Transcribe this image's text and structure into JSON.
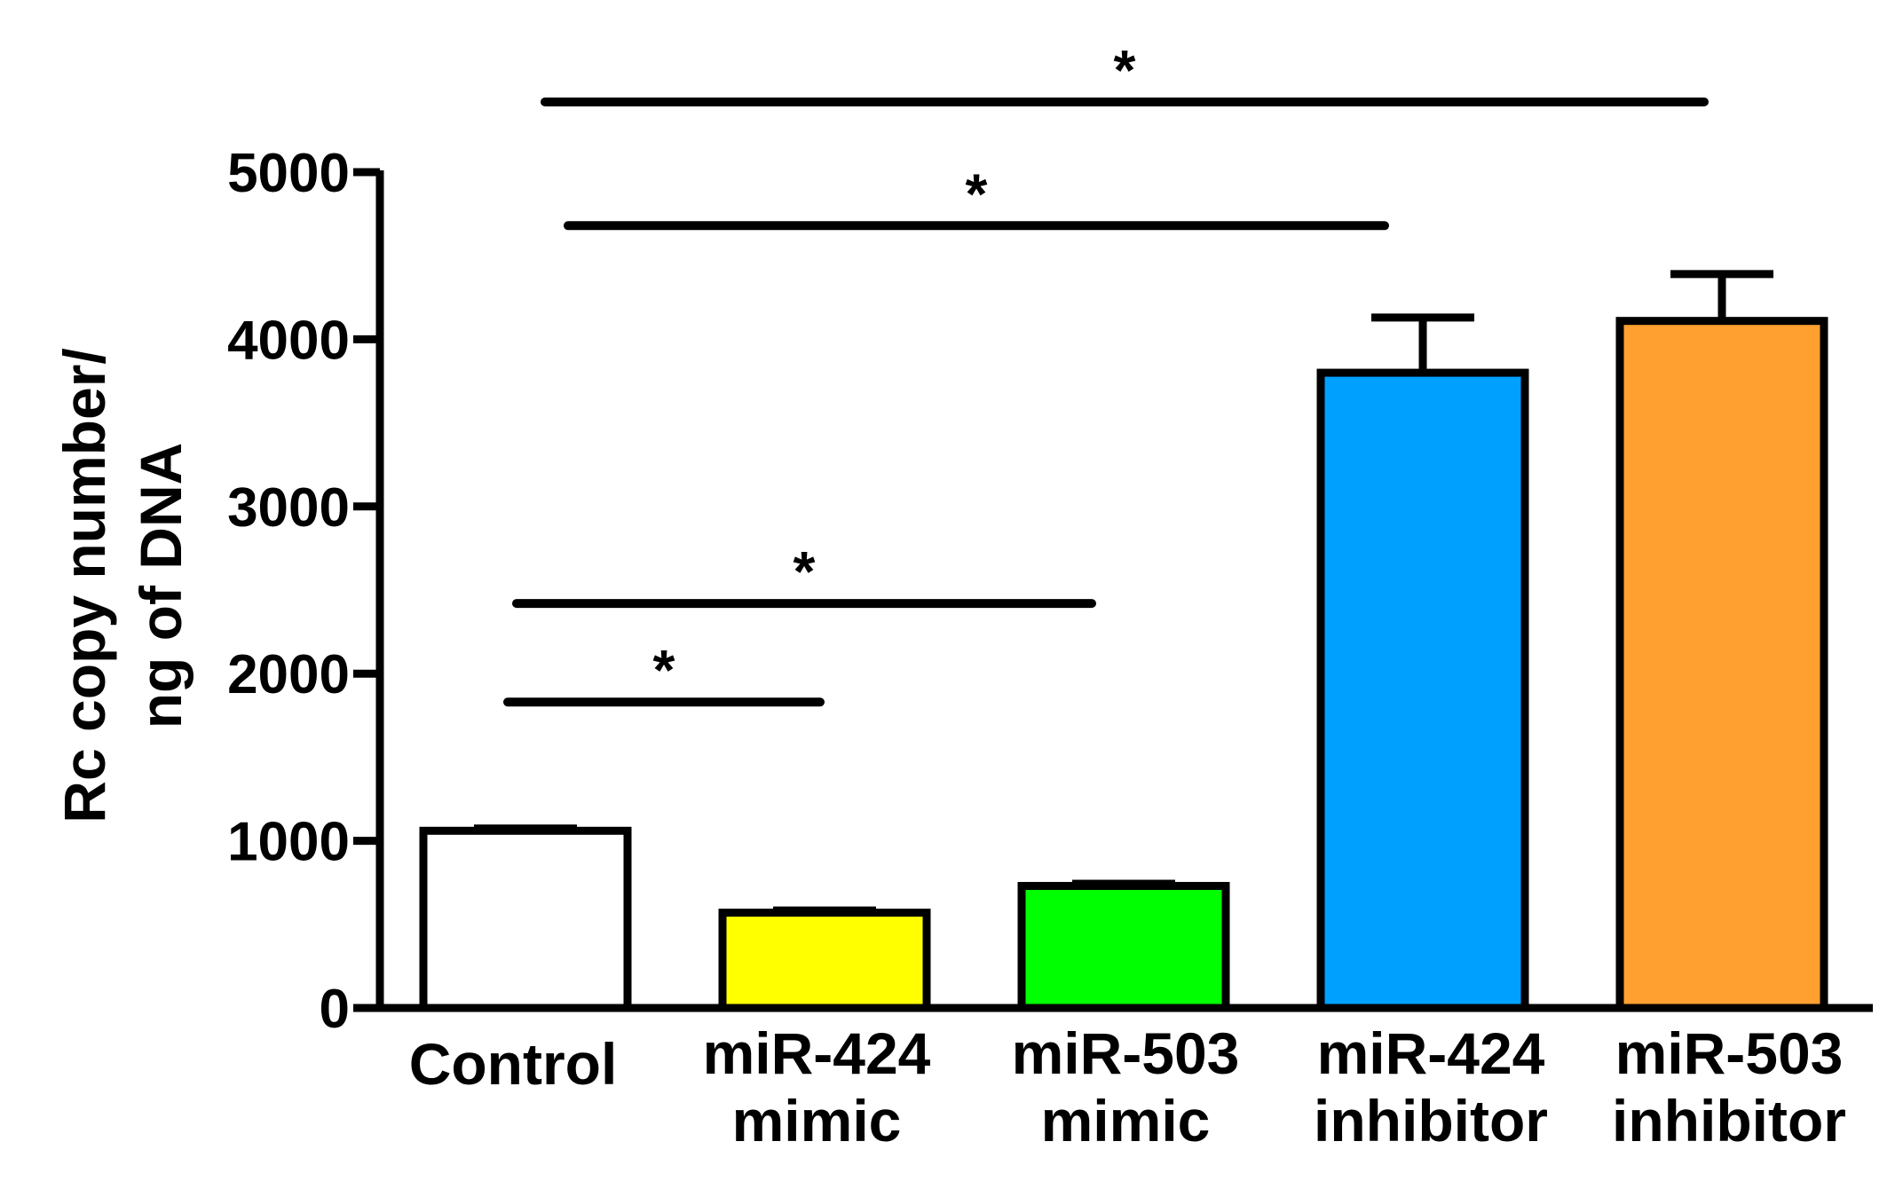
{
  "chart_data": {
    "type": "bar",
    "title": "",
    "ylabel_lines": [
      "Rc copy number/",
      "ng of DNA"
    ],
    "xlabel": "",
    "ylim": [
      0,
      5000
    ],
    "yticks": [
      0,
      1000,
      2000,
      3000,
      4000,
      5000
    ],
    "ytick_labels": [
      "0",
      "1000",
      "2000",
      "3000",
      "4000",
      "5000"
    ],
    "categories": [
      {
        "lines": [
          "Control"
        ]
      },
      {
        "lines": [
          "miR-424",
          "mimic"
        ]
      },
      {
        "lines": [
          "miR-503",
          "mimic"
        ]
      },
      {
        "lines": [
          "miR-424",
          "inhibitor"
        ]
      },
      {
        "lines": [
          "miR-503",
          "inhibitor"
        ]
      }
    ],
    "values": [
      1060,
      570,
      730,
      3800,
      4110
    ],
    "errors": [
      0,
      0,
      0,
      330,
      280
    ],
    "colors": [
      "#ffffff",
      "#ffff00",
      "#00ff00",
      "#00a0ff",
      "#ffa030"
    ],
    "significance": [
      {
        "from": 0,
        "to": 1,
        "y": 1830,
        "label": "*"
      },
      {
        "from": 0,
        "to": 2,
        "y": 2420,
        "label": "*"
      },
      {
        "from": 0,
        "to": 3,
        "y": 4680,
        "label": "*"
      },
      {
        "from": 0,
        "to": 4,
        "y": 5420,
        "label": "*"
      }
    ],
    "grid": false,
    "legend": "none"
  }
}
